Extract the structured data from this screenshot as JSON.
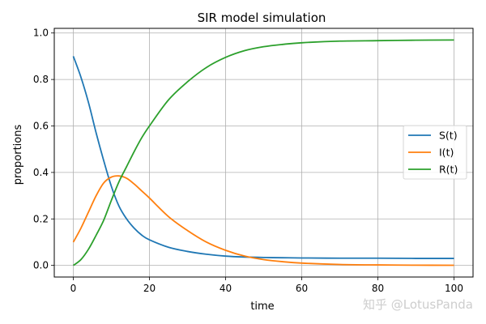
{
  "chart_data": {
    "type": "line",
    "title": "SIR model simulation",
    "xlabel": "time",
    "ylabel": "proportions",
    "xlim": [
      -5,
      105
    ],
    "ylim": [
      -0.05,
      1.02
    ],
    "xticks": [
      0,
      20,
      40,
      60,
      80,
      100
    ],
    "yticks": [
      0.0,
      0.2,
      0.4,
      0.6,
      0.8,
      1.0
    ],
    "xtick_labels": [
      "0",
      "20",
      "40",
      "60",
      "80",
      "100"
    ],
    "ytick_labels": [
      "0.0",
      "0.2",
      "0.4",
      "0.6",
      "0.8",
      "1.0"
    ],
    "grid": true,
    "legend_position": "center-right",
    "x": [
      0,
      2,
      4,
      6,
      8,
      10,
      12,
      14,
      16,
      18,
      20,
      25,
      30,
      35,
      40,
      45,
      50,
      55,
      60,
      70,
      80,
      90,
      100
    ],
    "series": [
      {
        "name": "S(t)",
        "color": "#1f77b4",
        "values": [
          0.9,
          0.81,
          0.7,
          0.57,
          0.45,
          0.34,
          0.255,
          0.2,
          0.16,
          0.13,
          0.11,
          0.078,
          0.06,
          0.048,
          0.04,
          0.036,
          0.034,
          0.033,
          0.032,
          0.031,
          0.031,
          0.03,
          0.03
        ]
      },
      {
        "name": "I(t)",
        "color": "#ff7f0e",
        "values": [
          0.1,
          0.16,
          0.23,
          0.3,
          0.355,
          0.38,
          0.385,
          0.375,
          0.35,
          0.32,
          0.29,
          0.21,
          0.15,
          0.1,
          0.065,
          0.04,
          0.025,
          0.016,
          0.01,
          0.004,
          0.002,
          0.001,
          0.0005
        ]
      },
      {
        "name": "R(t)",
        "color": "#2ca02c",
        "values": [
          0.0,
          0.025,
          0.07,
          0.13,
          0.195,
          0.28,
          0.36,
          0.425,
          0.49,
          0.55,
          0.6,
          0.712,
          0.79,
          0.852,
          0.895,
          0.924,
          0.941,
          0.951,
          0.958,
          0.965,
          0.967,
          0.969,
          0.97
        ]
      }
    ]
  },
  "watermark": "知乎 @LotusPanda"
}
